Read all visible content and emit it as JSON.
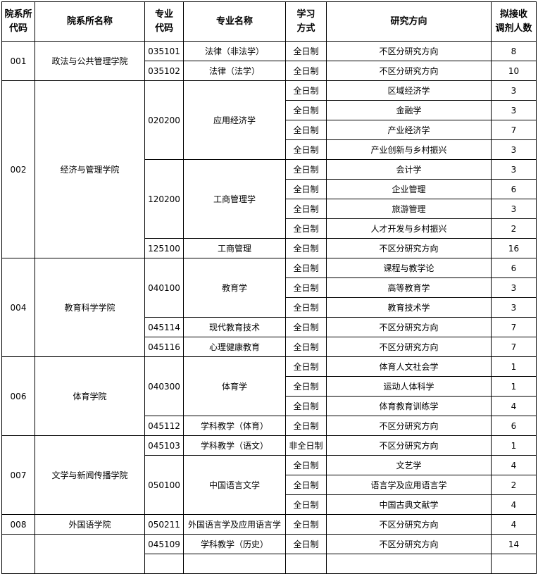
{
  "header": {
    "dept_code": "院系所\n代码",
    "dept_name": "院系所名称",
    "major_code": "专业\n代码",
    "major_name": "专业名称",
    "study_mode": "学习\n方式",
    "direction": "研究方向",
    "quota": "拟接收\n调剂人数"
  },
  "groups": [
    {
      "code": "001",
      "name": "政法与公共管理学院",
      "majors": [
        {
          "code": "035101",
          "name": "法律（非法学）",
          "rows": [
            {
              "mode": "全日制",
              "direction": "不区分研究方向",
              "count": "8"
            }
          ]
        },
        {
          "code": "035102",
          "name": "法律（法学）",
          "rows": [
            {
              "mode": "全日制",
              "direction": "不区分研究方向",
              "count": "10"
            }
          ]
        }
      ]
    },
    {
      "code": "002",
      "name": "经济与管理学院",
      "majors": [
        {
          "code": "020200",
          "name": "应用经济学",
          "rows": [
            {
              "mode": "全日制",
              "direction": "区域经济学",
              "count": "3"
            },
            {
              "mode": "全日制",
              "direction": "金融学",
              "count": "3"
            },
            {
              "mode": "全日制",
              "direction": "产业经济学",
              "count": "7"
            },
            {
              "mode": "全日制",
              "direction": "产业创新与乡村振兴",
              "count": "3"
            }
          ]
        },
        {
          "code": "120200",
          "name": "工商管理学",
          "rows": [
            {
              "mode": "全日制",
              "direction": "会计学",
              "count": "3"
            },
            {
              "mode": "全日制",
              "direction": "企业管理",
              "count": "6"
            },
            {
              "mode": "全日制",
              "direction": "旅游管理",
              "count": "3"
            },
            {
              "mode": "全日制",
              "direction": "人才开发与乡村振兴",
              "count": "2"
            }
          ]
        },
        {
          "code": "125100",
          "name": "工商管理",
          "rows": [
            {
              "mode": "全日制",
              "direction": "不区分研究方向",
              "count": "16"
            }
          ]
        }
      ]
    },
    {
      "code": "004",
      "name": "教育科学学院",
      "majors": [
        {
          "code": "040100",
          "name": "教育学",
          "rows": [
            {
              "mode": "全日制",
              "direction": "课程与教学论",
              "count": "6"
            },
            {
              "mode": "全日制",
              "direction": "高等教育学",
              "count": "3"
            },
            {
              "mode": "全日制",
              "direction": "教育技术学",
              "count": "3"
            }
          ]
        },
        {
          "code": "045114",
          "name": "现代教育技术",
          "rows": [
            {
              "mode": "全日制",
              "direction": "不区分研究方向",
              "count": "7"
            }
          ]
        },
        {
          "code": "045116",
          "name": "心理健康教育",
          "rows": [
            {
              "mode": "全日制",
              "direction": "不区分研究方向",
              "count": "7"
            }
          ]
        }
      ]
    },
    {
      "code": "006",
      "name": "体育学院",
      "majors": [
        {
          "code": "040300",
          "name": "体育学",
          "rows": [
            {
              "mode": "全日制",
              "direction": "体育人文社会学",
              "count": "1"
            },
            {
              "mode": "全日制",
              "direction": "运动人体科学",
              "count": "1"
            },
            {
              "mode": "全日制",
              "direction": "体育教育训练学",
              "count": "4"
            }
          ]
        },
        {
          "code": "045112",
          "name": "学科教学（体育）",
          "rows": [
            {
              "mode": "全日制",
              "direction": "不区分研究方向",
              "count": "6"
            }
          ]
        }
      ]
    },
    {
      "code": "007",
      "name": "文学与新闻传播学院",
      "majors": [
        {
          "code": "045103",
          "name": "学科教学（语文）",
          "rows": [
            {
              "mode": "非全日制",
              "direction": "不区分研究方向",
              "count": "1"
            }
          ]
        },
        {
          "code": "050100",
          "name": "中国语言文学",
          "rows": [
            {
              "mode": "全日制",
              "direction": "文艺学",
              "count": "4"
            },
            {
              "mode": "全日制",
              "direction": "语言学及应用语言学",
              "count": "2"
            },
            {
              "mode": "全日制",
              "direction": "中国古典文献学",
              "count": "4"
            }
          ]
        }
      ]
    },
    {
      "code": "008",
      "name": "外国语学院",
      "majors": [
        {
          "code": "050211",
          "name": "外国语言学及应用语言学",
          "rows": [
            {
              "mode": "全日制",
              "direction": "不区分研究方向",
              "count": "4"
            }
          ]
        }
      ]
    },
    {
      "code": "",
      "name": "",
      "majors": [
        {
          "code": "045109",
          "name": "学科教学（历史）",
          "rows": [
            {
              "mode": "全日制",
              "direction": "不区分研究方向",
              "count": "14"
            }
          ]
        }
      ]
    }
  ]
}
